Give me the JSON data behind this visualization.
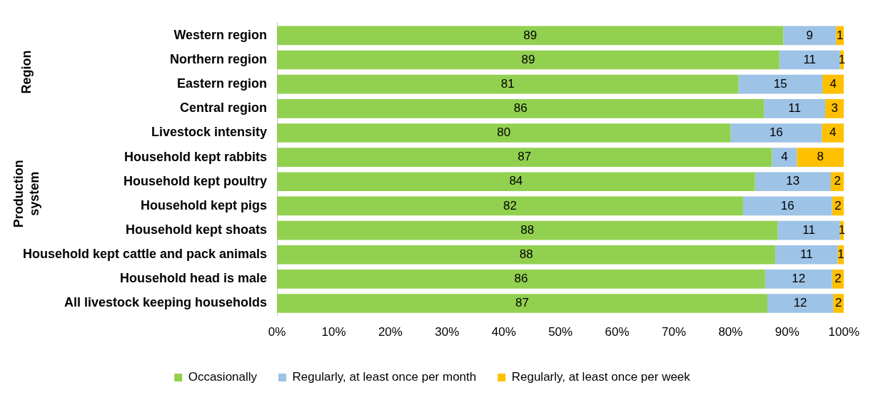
{
  "chart_data": {
    "type": "bar",
    "orientation": "horizontal",
    "stacked": true,
    "categories": [
      "Western region",
      "Northern region",
      "Eastern region",
      "Central region",
      "Livestock intensity",
      "Household kept rabbits",
      "Household kept poultry",
      "Household kept pigs",
      "Household kept shoats",
      "Household kept cattle and pack animals",
      "Household head is male",
      "All livestock keeping households"
    ],
    "series": [
      {
        "name": "Occasionally",
        "color": "#92d050",
        "values": [
          89.3,
          88.6,
          81.4,
          85.9,
          80.0,
          87.3,
          84.3,
          82.2,
          88.3,
          87.9,
          86.1,
          86.5
        ],
        "value_labels": [
          "89",
          "89",
          "81",
          "86",
          "80",
          "87",
          "84",
          "82",
          "88",
          "88",
          "86",
          "87"
        ]
      },
      {
        "name": "Regularly, at least once per month",
        "color": "#9dc3e6",
        "values": [
          9.3,
          10.7,
          14.8,
          10.8,
          16.1,
          4.4,
          13.4,
          15.7,
          11.0,
          11.0,
          11.8,
          11.6
        ],
        "value_labels": [
          "9",
          "11",
          "15",
          "11",
          "16",
          "4",
          "13",
          "16",
          "11",
          "11",
          "12",
          "12"
        ]
      },
      {
        "name": "Regularly, at least once per week",
        "color": "#ffc000",
        "values": [
          1.4,
          0.7,
          3.8,
          3.3,
          3.9,
          8.3,
          2.3,
          2.1,
          0.7,
          1.1,
          2.1,
          1.9
        ],
        "value_labels": [
          "1",
          "1",
          "4",
          "3",
          "4",
          "8",
          "2",
          "2",
          "1",
          "1",
          "2",
          "2"
        ]
      }
    ],
    "xlim": [
      0,
      100
    ],
    "xticks": [
      {
        "value": 0,
        "label": "0%"
      },
      {
        "value": 10,
        "label": "10%"
      },
      {
        "value": 20,
        "label": "20%"
      },
      {
        "value": 30,
        "label": "30%"
      },
      {
        "value": 40,
        "label": "40%"
      },
      {
        "value": 50,
        "label": "50%"
      },
      {
        "value": 60,
        "label": "60%"
      },
      {
        "value": 70,
        "label": "70%"
      },
      {
        "value": 80,
        "label": "80%"
      },
      {
        "value": 90,
        "label": "90%"
      },
      {
        "value": 100,
        "label": "100%"
      }
    ],
    "grid": false,
    "legend": "bottom",
    "annotations": [
      "Region",
      "Production system"
    ]
  }
}
